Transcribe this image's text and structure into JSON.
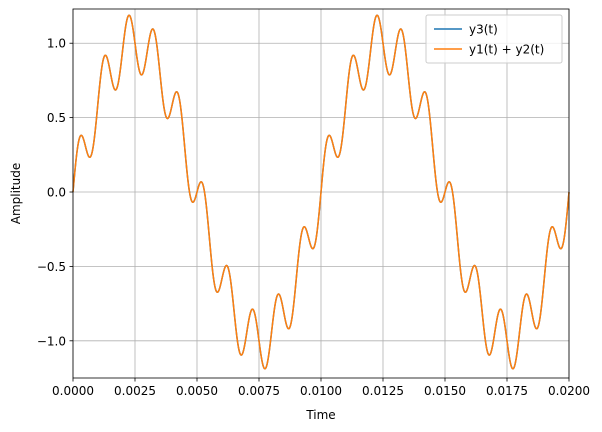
{
  "chart_data": {
    "type": "line",
    "title": "",
    "xlabel": "Time",
    "ylabel": "Amplitude",
    "xlim": [
      0,
      0.02
    ],
    "ylim": [
      -1.25,
      1.23
    ],
    "grid": true,
    "legend_position": "top-right",
    "x_ticks": [
      0,
      0.0025,
      0.005,
      0.0075,
      0.01,
      0.0125,
      0.015,
      0.0175,
      0.02
    ],
    "x_tick_labels": [
      "0.0000",
      "0.0025",
      "0.0050",
      "0.0075",
      "0.0100",
      "0.0125",
      "0.0150",
      "0.0175",
      "0.0200"
    ],
    "y_ticks": [
      -1.0,
      -0.5,
      0.0,
      0.5,
      1.0
    ],
    "y_tick_labels": [
      "−1.0",
      "−0.5",
      "0.0",
      "0.5",
      "1.0"
    ],
    "series": [
      {
        "name": "y3(t)",
        "color": "#1f77b4",
        "components": [
          {
            "amplitude": 1.0,
            "frequency_hz": 100
          },
          {
            "amplitude": 0.2,
            "frequency_hz": 1000
          }
        ]
      },
      {
        "name": "y1(t) + y2(t)",
        "color": "#ff7f0e",
        "components": [
          {
            "amplitude": 1.0,
            "frequency_hz": 100
          },
          {
            "amplitude": 0.2,
            "frequency_hz": 1000
          }
        ]
      }
    ]
  }
}
